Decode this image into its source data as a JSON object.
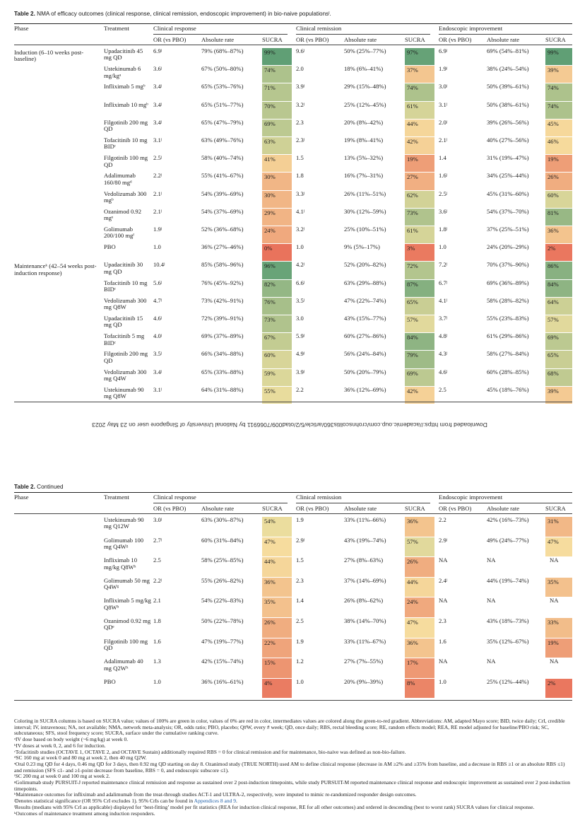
{
  "caption": {
    "label": "Table 2.",
    "text": " NMA of efficacy outcomes (clinical response, clinical remission, endoscopic improvement) in bio-naive populationsˡ."
  },
  "continued_caption": {
    "label": "Table 2.",
    "text": " Continued"
  },
  "headers": {
    "phase": "Phase",
    "treatment": "Treatment",
    "groups": [
      "Clinical response",
      "Clinical remission",
      "Endoscopic improvement"
    ],
    "sub": [
      "OR (vs PBO)",
      "Absolute rate",
      "SUCRA"
    ]
  },
  "colors": {
    "green": "#5d9e74",
    "red": "#e9735c",
    "yellow": "#f7e3a2"
  },
  "watermark": "Downloaded from https://academic.oup.com/crohnscolitis360/article/5/2/otad009/7066911 by National University of Singapore user on 23 May 2023",
  "table1": {
    "phases": [
      {
        "label": "Induction (6–10 weeks post-baseline)"
      },
      {
        "label": "Maintenanceᵏ (42–54 weeks post-induction response)"
      }
    ],
    "rows": [
      {
        "t": "Upadacitinib 45 mg QD",
        "cr": [
          "6.9ʲ",
          "79% (68%–87%)",
          "99%",
          99
        ],
        "rm": [
          "9.6ʲ",
          "50% (25%–77%)",
          "97%",
          97
        ],
        "en": [
          "6.9ʲ",
          "69% (54%–81%)",
          "99%",
          99
        ]
      },
      {
        "t": "Ustekinumab 6 mg/kgᵃ",
        "cr": [
          "3.6ʲ",
          "67% (50%–80%)",
          "74%",
          74
        ],
        "rm": [
          "2.0",
          "18% (6%–41%)",
          "37%",
          37
        ],
        "en": [
          "1.9ʲ",
          "38% (24%–54%)",
          "39%",
          39
        ]
      },
      {
        "t": "Infliximab 5 mgᵇ",
        "cr": [
          "3.4ʲ",
          "65% (53%–76%)",
          "71%",
          71
        ],
        "rm": [
          "3.9ʲ",
          "29% (15%–48%)",
          "74%",
          74
        ],
        "en": [
          "3.0ʲ",
          "50% (39%–61%)",
          "74%",
          74
        ]
      },
      {
        "t": "Infliximab 10 mgᵇ",
        "cr": [
          "3.4ʲ",
          "65% (51%–77%)",
          "70%",
          70
        ],
        "rm": [
          "3.2ʲ",
          "25% (12%–45%)",
          "61%",
          61
        ],
        "en": [
          "3.1ʲ",
          "50% (38%–61%)",
          "74%",
          74
        ]
      },
      {
        "t": "Filgotinib 200 mg QD",
        "cr": [
          "3.4ʲ",
          "65% (47%–79%)",
          "69%",
          69
        ],
        "rm": [
          "2.3",
          "20% (8%–42%)",
          "44%",
          44
        ],
        "en": [
          "2.0ʲ",
          "39% (26%–56%)",
          "45%",
          45
        ]
      },
      {
        "t": "Tofacitinib 10 mg BIDᶜ",
        "cr": [
          "3.1ʲ",
          "63% (49%–76%)",
          "63%",
          63
        ],
        "rm": [
          "2.3ʲ",
          "19% (8%–41%)",
          "42%",
          42
        ],
        "en": [
          "2.1ʲ",
          "40% (27%–56%)",
          "46%",
          46
        ]
      },
      {
        "t": "Filgotinib 100 mg QD",
        "cr": [
          "2.5ʲ",
          "58% (40%–74%)",
          "41%",
          41
        ],
        "rm": [
          "1.5",
          "13% (5%–32%)",
          "19%",
          19
        ],
        "en": [
          "1.4",
          "31% (19%–47%)",
          "19%",
          19
        ]
      },
      {
        "t": "Adalimumab 160/80 mgᵈ",
        "cr": [
          "2.2ʲ",
          "55% (41%–67%)",
          "30%",
          30
        ],
        "rm": [
          "1.8",
          "16% (7%–31%)",
          "27%",
          27
        ],
        "en": [
          "1.6ʲ",
          "34% (25%–44%)",
          "26%",
          26
        ]
      },
      {
        "t": "Vedolizumab 300 mgᵇ",
        "cr": [
          "2.1ʲ",
          "54% (39%–69%)",
          "30%",
          30
        ],
        "rm": [
          "3.3ʲ",
          "26% (11%–51%)",
          "62%",
          62
        ],
        "en": [
          "2.5ʲ",
          "45% (31%–60%)",
          "60%",
          60
        ]
      },
      {
        "t": "Ozanimod 0.92 mgᵉ",
        "cr": [
          "2.1ʲ",
          "54% (37%–69%)",
          "29%",
          29
        ],
        "rm": [
          "4.1ʲ",
          "30% (12%–59%)",
          "73%",
          73
        ],
        "en": [
          "3.6ʲ",
          "54% (37%–70%)",
          "81%",
          81
        ]
      },
      {
        "t": "Golimumab 200/100 mgᶠ",
        "cr": [
          "1.9ʲ",
          "52% (36%–68%)",
          "24%",
          24
        ],
        "rm": [
          "3.2ʲ",
          "25% (10%–51%)",
          "61%",
          61
        ],
        "en": [
          "1.8ʲ",
          "37% (25%–51%)",
          "36%",
          36
        ]
      },
      {
        "t": "PBO",
        "cr": [
          "1.0",
          "36% (27%–46%)",
          "0%",
          0
        ],
        "rm": [
          "1.0",
          "9% (5%–17%)",
          "3%",
          3
        ],
        "en": [
          "1.0",
          "24% (20%–29%)",
          "2%",
          2
        ]
      },
      {
        "t": "Upadacitinib 30 mg QD",
        "cr": [
          "10.4ʲ",
          "85% (58%–96%)",
          "96%",
          96
        ],
        "rm": [
          "4.2ʲ",
          "52% (20%–82%)",
          "72%",
          72
        ],
        "en": [
          "7.2ʲ",
          "70% (37%–90%)",
          "86%",
          86
        ]
      },
      {
        "t": "Tofacitinib 10 mg BIDᶜ",
        "cr": [
          "5.6ʲ",
          "76% (45%–92%)",
          "82%",
          82
        ],
        "rm": [
          "6.6ʲ",
          "63% (29%–88%)",
          "87%",
          87
        ],
        "en": [
          "6.7ʲ",
          "69% (36%–89%)",
          "84%",
          84
        ]
      },
      {
        "t": "Vedolizumab 300 mg Q8W",
        "cr": [
          "4.7ʲ",
          "73% (42%–91%)",
          "76%",
          76
        ],
        "rm": [
          "3.5ʲ",
          "47% (22%–74%)",
          "65%",
          65
        ],
        "en": [
          "4.1ʲ",
          "58% (28%–82%)",
          "64%",
          64
        ]
      },
      {
        "t": "Upadacitinib 15 mg QD",
        "cr": [
          "4.6ʲ",
          "72% (39%–91%)",
          "73%",
          73
        ],
        "rm": [
          "3.0",
          "43% (15%–77%)",
          "57%",
          57
        ],
        "en": [
          "3.7ʲ",
          "55% (23%–83%)",
          "57%",
          57
        ]
      },
      {
        "t": "Tofacitinib 5 mg BIDᶜ",
        "cr": [
          "4.0ʲ",
          "69% (37%–89%)",
          "67%",
          67
        ],
        "rm": [
          "5.9ʲ",
          "60% (27%–86%)",
          "84%",
          84
        ],
        "en": [
          "4.8ʲ",
          "61% (29%–86%)",
          "69%",
          69
        ]
      },
      {
        "t": "Filgotinib 200 mg QD",
        "cr": [
          "3.5ʲ",
          "66% (34%–88%)",
          "60%",
          60
        ],
        "rm": [
          "4.9ʲ",
          "56% (24%–84%)",
          "79%",
          79
        ],
        "en": [
          "4.3ʲ",
          "58% (27%–84%)",
          "65%",
          65
        ]
      },
      {
        "t": "Vedolizumab 300 mg Q4W",
        "cr": [
          "3.4ʲ",
          "65% (33%–88%)",
          "59%",
          59
        ],
        "rm": [
          "3.9ʲ",
          "50% (20%–79%)",
          "69%",
          69
        ],
        "en": [
          "4.6ʲ",
          "60% (28%–85%)",
          "68%",
          68
        ]
      },
      {
        "t": "Ustekinumab 90 mg Q8W",
        "cr": [
          "3.1ʲ",
          "64% (31%–88%)",
          "55%",
          55
        ],
        "rm": [
          "2.2",
          "36% (12%–69%)",
          "42%",
          42
        ],
        "en": [
          "2.5",
          "45% (18%–76%)",
          "39%",
          39
        ]
      }
    ]
  },
  "table2": {
    "rows": [
      {
        "t": "Ustekinumab 90 mg Q12W",
        "cr": [
          "3.0ʲ",
          "63% (30%–87%)",
          "54%",
          54
        ],
        "rm": [
          "1.9",
          "33% (11%–66%)",
          "36%",
          36
        ],
        "en": [
          "2.2",
          "42% (16%–73%)",
          "31%",
          31
        ]
      },
      {
        "t": "Golimumab 100 mg Q4Wᵍ",
        "cr": [
          "2.7ʲ",
          "60% (31%–84%)",
          "47%",
          47
        ],
        "rm": [
          "2.9ʲ",
          "43% (19%–74%)",
          "57%",
          57
        ],
        "en": [
          "2.9ʲ",
          "49% (24%–77%)",
          "47%",
          47
        ]
      },
      {
        "t": "Infliximab 10 mg/kg Q8Wʰ",
        "cr": [
          "2.5",
          "58% (25%–85%)",
          "44%",
          44
        ],
        "rm": [
          "1.5",
          "27% (8%–63%)",
          "26%",
          26
        ],
        "en": [
          "NA",
          "NA",
          "NA",
          -1
        ]
      },
      {
        "t": "Golimumab 50 mg Q4Wᵍ",
        "cr": [
          "2.2ʲ",
          "55% (26%–82%)",
          "36%",
          36
        ],
        "rm": [
          "2.3",
          "37% (14%–69%)",
          "44%",
          44
        ],
        "en": [
          "2.4ʲ",
          "44% (19%–74%)",
          "35%",
          35
        ]
      },
      {
        "t": "Infliximab 5 mg/kg Q8Wʰ",
        "cr": [
          "2.1",
          "54% (22%–83%)",
          "35%",
          35
        ],
        "rm": [
          "1.4",
          "26% (8%–62%)",
          "24%",
          24
        ],
        "en": [
          "NA",
          "NA",
          "NA",
          -1
        ]
      },
      {
        "t": "Ozanimod 0.92 mg QDᵉ",
        "cr": [
          "1.8",
          "50% (22%–78%)",
          "26%",
          26
        ],
        "rm": [
          "2.5",
          "38% (14%–70%)",
          "47%",
          47
        ],
        "en": [
          "2.3",
          "43% (18%–73%)",
          "33%",
          33
        ]
      },
      {
        "t": "Filgotinib 100 mg QD",
        "cr": [
          "1.6",
          "47% (19%–77%)",
          "22%",
          22
        ],
        "rm": [
          "1.9",
          "33% (11%–67%)",
          "36%",
          36
        ],
        "en": [
          "1.6",
          "35% (12%–67%)",
          "19%",
          19
        ]
      },
      {
        "t": "Adalimumab 40 mg Q2Wʰ",
        "cr": [
          "1.3",
          "42% (15%–74%)",
          "15%",
          15
        ],
        "rm": [
          "1.2",
          "27% (7%–55%)",
          "17%",
          17
        ],
        "en": [
          "NA",
          "NA",
          "NA",
          -1
        ]
      },
      {
        "t": "PBO",
        "cr": [
          "1.0",
          "36% (16%–61%)",
          "4%",
          4
        ],
        "rm": [
          "1.0",
          "20% (9%–39%)",
          "8%",
          8
        ],
        "en": [
          "1.0",
          "25% (12%–44%)",
          "2%",
          2
        ]
      }
    ]
  },
  "footnotes": [
    "Coloring in SUCRA columns is based on SUCRA value; values of 100% are green in color, values of 0% are red in color, intermediates values are colored along the green-to-red gradient. Abbreviations: AM, adapted Mayo score; BID, twice daily; CrI, credible interval; IV, intravenous; NA, not available; NMA, network meta-analysis; OR, odds ratio; PBO, placebo; Q#W, every # week; QD, once daily; RBS, rectal bleeding score; RE, random effects model; REA, RE model adjusted for baseline/PBO risk; SC, subcutaneous; SFS, stool frequency score; SUCRA, surface under the cumulative ranking curve.",
    "ᵃIV dose based on body weight (~6 mg/kg) at week 0.",
    "ᵇIV doses at week 0, 2, and 6 for induction.",
    "ᶜTofacitinib studies (OCTAVE 1, OCTAVE 2, and OCTAVE Sustain) additionally required RBS = 0 for clinical remission and for maintenance, bio-naive was defined as non-bio-failure.",
    "ᵈSC 160 mg at week 0 and 80 mg at week 2, then 40 mg Q2W.",
    "ᵉOral 0.23 mg QD for 4 days, 0.46 mg QD for 3 days, then 0.92 mg QD starting on day 8. Ozanimod study (TRUE NORTH) used AM to define clinical response (decrease in AM ≥2% and ≥35% from baseline, and a decrease in RBS ≥1 or an absolute RBS ≤1) and remission (SFS ≤1- and ≥1-point decrease from baseline, RBS = 0, and endoscopic subscore ≤1).",
    "ᶠSC 200 mg at week 0 and 100 mg at week 2.",
    "ᵍGolimumab study PURSUIT-J reported maintenance clinical remission and response as sustained over 2 post-induction timepoints, while study PURSUIT-M reported maintenance clinical response and endoscopic improvement as sustained over 2 post-induction timepoints.",
    "ʰMaintenance outcomes for infliximab and adalimumab from the treat-through studies ACT-1 and ULTRA-2, respectively, were imputed to mimic re-randomized responder design outcomes.",
    "ʲDenotes statistical significance (OR 95% CrI excludes 1). 95% CrIs can be found in ",
    "Appendices 8 and 9",
    ".",
    "ˡResults (medians with 95% CrI as applicable) displayed for ‘best-fitting’ model per fit statistics (REA for induction clinical response, RE for all other outcomes) and ordered in descending (best to worst rank) SUCRA values for clinical response.",
    "ᵏOutcomes of maintenance treatment among induction responders."
  ]
}
